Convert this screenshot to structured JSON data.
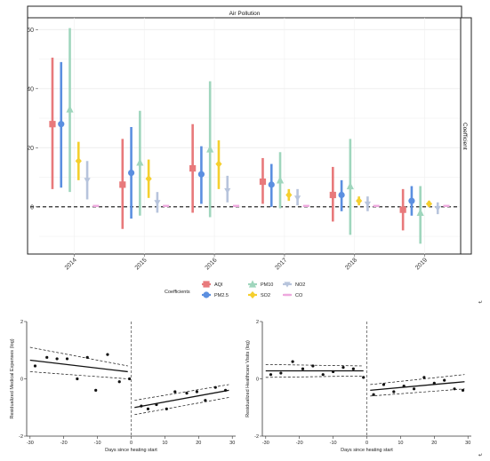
{
  "colors": {
    "AQI": "#e8797b",
    "PM2.5": "#5b8fe0",
    "PM10": "#9fd6bd",
    "SO2": "#f5cf2e",
    "NO2": "#b7c4dc",
    "CO": "#eea8de"
  },
  "chart_data": [
    {
      "type": "errorbar",
      "title": "Air Pollution",
      "right_strip_label": "Coefficient",
      "legend_title": "Coefficients",
      "legend_position": "bottom",
      "categories": [
        "2014",
        "2015",
        "2016",
        "2017",
        "2018",
        "2019"
      ],
      "ylim": [
        -16,
        64
      ],
      "yticks": [
        0,
        20,
        40,
        60
      ],
      "reference_line": 0,
      "series": [
        {
          "name": "AQI",
          "shape": "square",
          "estimate": [
            28,
            7.5,
            13,
            8.5,
            4,
            -1
          ],
          "lower": [
            6,
            -7.5,
            -2,
            1,
            -5,
            -8
          ],
          "upper": [
            50.5,
            23,
            28,
            16.5,
            13.5,
            6
          ]
        },
        {
          "name": "PM2.5",
          "shape": "circle",
          "estimate": [
            28,
            11.5,
            11,
            7.5,
            4,
            2
          ],
          "lower": [
            6.5,
            -4,
            1,
            0,
            -1.5,
            -3
          ],
          "upper": [
            49,
            27,
            20.5,
            14.5,
            9,
            7
          ]
        },
        {
          "name": "PM10",
          "shape": "triangle",
          "estimate": [
            33,
            15,
            19.5,
            9,
            7,
            -2
          ],
          "lower": [
            5,
            -3,
            -3.5,
            -0.5,
            -9.5,
            -12.5
          ],
          "upper": [
            60.5,
            32.5,
            42.5,
            18.5,
            23,
            7
          ]
        },
        {
          "name": "SO2",
          "shape": "diamond",
          "estimate": [
            15.5,
            9.5,
            14.5,
            4,
            2,
            1
          ],
          "lower": [
            9,
            3,
            6,
            2,
            0.5,
            0
          ],
          "upper": [
            22,
            16,
            22.5,
            6,
            3.5,
            2
          ]
        },
        {
          "name": "NO2",
          "shape": "triangle-down",
          "estimate": [
            9,
            1.5,
            5.5,
            3,
            1,
            -0.5
          ],
          "lower": [
            2.5,
            -2,
            1.5,
            0.5,
            -1.5,
            -2.5
          ],
          "upper": [
            15.5,
            5,
            10.5,
            6,
            3.5,
            1.5
          ]
        },
        {
          "name": "CO",
          "shape": "dash",
          "estimate": [
            0.3,
            0.3,
            0.3,
            0.3,
            0.3,
            0.3
          ],
          "lower": [
            0.1,
            0.1,
            0.1,
            0.1,
            0.1,
            0.1
          ],
          "upper": [
            0.5,
            0.5,
            0.5,
            0.5,
            0.5,
            0.5
          ]
        }
      ]
    },
    {
      "type": "scatter",
      "title": "",
      "xlabel": "Days since heating start",
      "ylabel": "Residualized Medical Expenses (log)",
      "xlim": [
        -31,
        31
      ],
      "ylim": [
        -2,
        2
      ],
      "xticks": [
        -30,
        -20,
        -10,
        0,
        10,
        20,
        30
      ],
      "yticks": [
        -2,
        0,
        2
      ],
      "cutoff": 0,
      "points": [
        {
          "x": -28.5,
          "y": 0.45
        },
        {
          "x": -25,
          "y": 0.75
        },
        {
          "x": -22,
          "y": 0.7
        },
        {
          "x": -19,
          "y": 0.7
        },
        {
          "x": -16,
          "y": 0.0
        },
        {
          "x": -13,
          "y": 0.75
        },
        {
          "x": -10.5,
          "y": -0.4
        },
        {
          "x": -7,
          "y": 0.85
        },
        {
          "x": -3.5,
          "y": -0.1
        },
        {
          "x": -0.5,
          "y": 0.0
        },
        {
          "x": 3,
          "y": -0.95
        },
        {
          "x": 5,
          "y": -1.05
        },
        {
          "x": 7.5,
          "y": -0.9
        },
        {
          "x": 10.5,
          "y": -1.05
        },
        {
          "x": 13,
          "y": -0.45
        },
        {
          "x": 16.5,
          "y": -0.5
        },
        {
          "x": 19.5,
          "y": -0.45
        },
        {
          "x": 22,
          "y": -0.75
        },
        {
          "x": 25,
          "y": -0.3
        },
        {
          "x": 28,
          "y": -0.4
        }
      ],
      "fit_pre": {
        "x": [
          -30,
          -1
        ],
        "y": [
          0.65,
          0.25
        ]
      },
      "fit_pre_ci_upper": {
        "x": [
          -30,
          -1
        ],
        "y": [
          1.1,
          0.45
        ]
      },
      "fit_pre_ci_lower": {
        "x": [
          -30,
          -1
        ],
        "y": [
          0.25,
          0.0
        ]
      },
      "fit_post": {
        "x": [
          1,
          29
        ],
        "y": [
          -1.0,
          -0.4
        ]
      },
      "fit_post_ci_upper": {
        "x": [
          1,
          29
        ],
        "y": [
          -0.75,
          -0.2
        ]
      },
      "fit_post_ci_lower": {
        "x": [
          1,
          29
        ],
        "y": [
          -1.25,
          -0.65
        ]
      }
    },
    {
      "type": "scatter",
      "title": "",
      "xlabel": "Days since heating start",
      "ylabel": "Residualized Healthcare Visits (log)",
      "xlim": [
        -31,
        31
      ],
      "ylim": [
        -2,
        2
      ],
      "xticks": [
        -30,
        -20,
        -10,
        0,
        10,
        20,
        30
      ],
      "yticks": [
        -2,
        0,
        2
      ],
      "cutoff": 0,
      "points": [
        {
          "x": -28.5,
          "y": 0.15
        },
        {
          "x": -25.5,
          "y": 0.2
        },
        {
          "x": -22,
          "y": 0.6
        },
        {
          "x": -19,
          "y": 0.35
        },
        {
          "x": -16,
          "y": 0.45
        },
        {
          "x": -13,
          "y": 0.15
        },
        {
          "x": -10,
          "y": 0.25
        },
        {
          "x": -7,
          "y": 0.4
        },
        {
          "x": -4,
          "y": 0.35
        },
        {
          "x": -1,
          "y": 0.05
        },
        {
          "x": 2,
          "y": -0.55
        },
        {
          "x": 5,
          "y": -0.2
        },
        {
          "x": 8,
          "y": -0.45
        },
        {
          "x": 11,
          "y": -0.25
        },
        {
          "x": 14,
          "y": -0.35
        },
        {
          "x": 17,
          "y": 0.05
        },
        {
          "x": 20,
          "y": -0.15
        },
        {
          "x": 23,
          "y": -0.05
        },
        {
          "x": 26,
          "y": -0.35
        },
        {
          "x": 28.5,
          "y": -0.4
        }
      ],
      "fit_pre": {
        "x": [
          -30,
          -1
        ],
        "y": [
          0.28,
          0.28
        ]
      },
      "fit_pre_ci_upper": {
        "x": [
          -30,
          -1
        ],
        "y": [
          0.5,
          0.45
        ]
      },
      "fit_pre_ci_lower": {
        "x": [
          -30,
          -1
        ],
        "y": [
          0.05,
          0.1
        ]
      },
      "fit_post": {
        "x": [
          1,
          29
        ],
        "y": [
          -0.4,
          -0.1
        ]
      },
      "fit_post_ci_upper": {
        "x": [
          1,
          29
        ],
        "y": [
          -0.2,
          0.15
        ]
      },
      "fit_post_ci_lower": {
        "x": [
          1,
          29
        ],
        "y": [
          -0.6,
          -0.35
        ]
      }
    }
  ]
}
